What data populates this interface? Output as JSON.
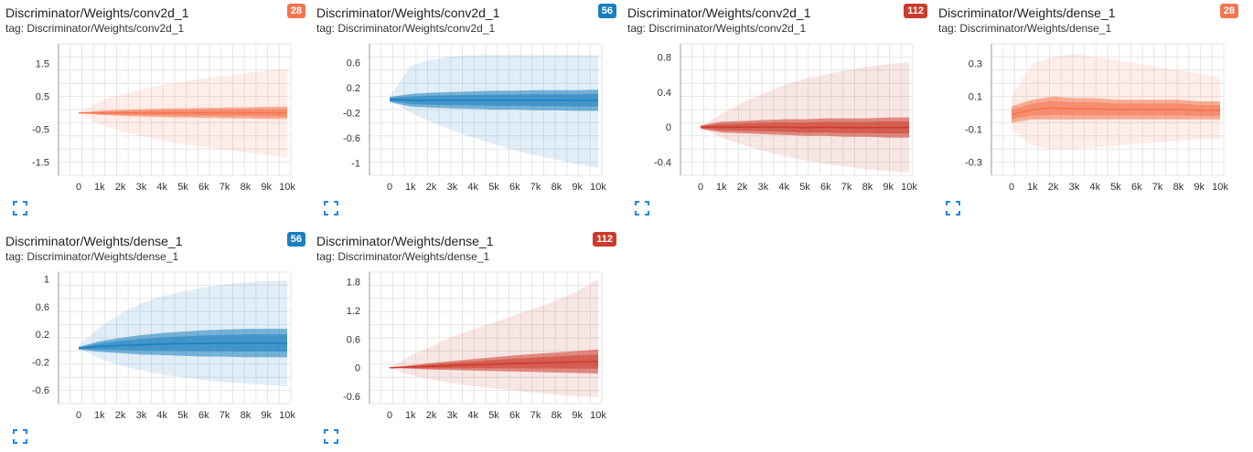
{
  "colors": {
    "step28": "#f4754f",
    "step56": "#1a7fbf",
    "step112": "#cc3b2b",
    "expand_icon": "#1e88e5"
  },
  "cards": [
    {
      "title": "Discriminator/Weights/conv2d_1",
      "tag": "tag: Discriminator/Weights/conv2d_1",
      "badge": "28",
      "color": "#f4754f"
    },
    {
      "title": "Discriminator/Weights/conv2d_1",
      "tag": "tag: Discriminator/Weights/conv2d_1",
      "badge": "56",
      "color": "#1a7fbf"
    },
    {
      "title": "Discriminator/Weights/conv2d_1",
      "tag": "tag: Discriminator/Weights/conv2d_1",
      "badge": "112",
      "color": "#cc3b2b"
    },
    {
      "title": "Discriminator/Weights/dense_1",
      "tag": "tag: Discriminator/Weights/dense_1",
      "badge": "28",
      "color": "#f4754f"
    },
    {
      "title": "Discriminator/Weights/dense_1",
      "tag": "tag: Discriminator/Weights/dense_1",
      "badge": "56",
      "color": "#1a7fbf"
    },
    {
      "title": "Discriminator/Weights/dense_1",
      "tag": "tag: Discriminator/Weights/dense_1",
      "badge": "112",
      "color": "#cc3b2b"
    }
  ],
  "chart_data": [
    {
      "type": "area",
      "title": "Discriminator/Weights/conv2d_1",
      "x_ticks": [
        "0",
        "1k",
        "2k",
        "3k",
        "4k",
        "5k",
        "6k",
        "7k",
        "8k",
        "9k",
        "10k"
      ],
      "xlim": [
        0,
        10000
      ],
      "y_ticks": [
        "1.5",
        "0.5",
        "-0.5",
        "-1.5"
      ],
      "y_tick_values": [
        1.5,
        0.5,
        -0.5,
        -1.5
      ],
      "ylim": [
        -1.9,
        2.1
      ],
      "x": [
        0,
        1000,
        2000,
        3000,
        4000,
        5000,
        6000,
        7000,
        8000,
        9000,
        10000
      ],
      "outer_upper": [
        0.0,
        0.35,
        0.55,
        0.7,
        0.85,
        0.95,
        1.05,
        1.12,
        1.2,
        1.28,
        1.35
      ],
      "outer_lower": [
        0.0,
        -0.35,
        -0.55,
        -0.7,
        -0.85,
        -0.95,
        -1.05,
        -1.12,
        -1.2,
        -1.28,
        -1.35
      ],
      "inner_upper": [
        0.0,
        0.06,
        0.09,
        0.11,
        0.13,
        0.14,
        0.15,
        0.16,
        0.17,
        0.18,
        0.19
      ],
      "inner_lower": [
        0.0,
        -0.06,
        -0.09,
        -0.11,
        -0.13,
        -0.14,
        -0.15,
        -0.16,
        -0.17,
        -0.18,
        -0.19
      ],
      "grid": true
    },
    {
      "type": "area",
      "title": "Discriminator/Weights/conv2d_1",
      "x_ticks": [
        "0",
        "1k",
        "2k",
        "3k",
        "4k",
        "5k",
        "6k",
        "7k",
        "8k",
        "9k",
        "10k"
      ],
      "xlim": [
        0,
        10000
      ],
      "y_ticks": [
        "0.6",
        "0.2",
        "-0.2",
        "-0.6",
        "-1"
      ],
      "y_tick_values": [
        0.6,
        0.2,
        -0.2,
        -0.6,
        -1.0
      ],
      "ylim": [
        -1.2,
        0.9
      ],
      "x": [
        0,
        1000,
        2000,
        3000,
        4000,
        5000,
        6000,
        7000,
        8000,
        9000,
        10000
      ],
      "outer_upper": [
        0.05,
        0.55,
        0.65,
        0.7,
        0.72,
        0.72,
        0.72,
        0.72,
        0.72,
        0.72,
        0.72
      ],
      "outer_lower": [
        0.0,
        -0.2,
        -0.35,
        -0.48,
        -0.6,
        -0.7,
        -0.8,
        -0.88,
        -0.95,
        -1.02,
        -1.08
      ],
      "inner_upper": [
        0.05,
        0.1,
        0.12,
        0.13,
        0.14,
        0.15,
        0.15,
        0.16,
        0.16,
        0.16,
        0.17
      ],
      "inner_lower": [
        -0.03,
        -0.1,
        -0.12,
        -0.13,
        -0.14,
        -0.15,
        -0.15,
        -0.16,
        -0.16,
        -0.17,
        -0.17
      ],
      "grid": true
    },
    {
      "type": "area",
      "title": "Discriminator/Weights/conv2d_1",
      "x_ticks": [
        "0",
        "1k",
        "2k",
        "3k",
        "4k",
        "5k",
        "6k",
        "7k",
        "8k",
        "9k",
        "10k"
      ],
      "xlim": [
        0,
        10000
      ],
      "y_ticks": [
        "0.8",
        "0.4",
        "0",
        "-0.4"
      ],
      "y_tick_values": [
        0.8,
        0.4,
        0.0,
        -0.4
      ],
      "ylim": [
        -0.55,
        0.95
      ],
      "x": [
        0,
        1000,
        2000,
        3000,
        4000,
        5000,
        6000,
        7000,
        8000,
        9000,
        10000
      ],
      "outer_upper": [
        0.0,
        0.15,
        0.28,
        0.38,
        0.48,
        0.55,
        0.6,
        0.65,
        0.69,
        0.72,
        0.74
      ],
      "outer_lower": [
        0.0,
        -0.12,
        -0.2,
        -0.27,
        -0.33,
        -0.38,
        -0.42,
        -0.45,
        -0.48,
        -0.5,
        -0.52
      ],
      "inner_upper": [
        0.02,
        0.06,
        0.07,
        0.08,
        0.09,
        0.09,
        0.1,
        0.1,
        0.1,
        0.11,
        0.11
      ],
      "inner_lower": [
        -0.02,
        -0.06,
        -0.07,
        -0.08,
        -0.09,
        -0.1,
        -0.1,
        -0.11,
        -0.11,
        -0.12,
        -0.12
      ],
      "grid": true
    },
    {
      "type": "area",
      "title": "Discriminator/Weights/dense_1",
      "x_ticks": [
        "0",
        "1k",
        "2k",
        "3k",
        "4k",
        "5k",
        "6k",
        "7k",
        "8k",
        "9k",
        "10k"
      ],
      "xlim": [
        0,
        10000
      ],
      "y_ticks": [
        "0.3",
        "0.1",
        "-0.1",
        "-0.3"
      ],
      "y_tick_values": [
        0.3,
        0.1,
        -0.1,
        -0.3
      ],
      "ylim": [
        -0.38,
        0.42
      ],
      "x": [
        0,
        1000,
        2000,
        3000,
        4000,
        5000,
        6000,
        7000,
        8000,
        9000,
        10000
      ],
      "outer_upper": [
        0.1,
        0.3,
        0.34,
        0.36,
        0.34,
        0.32,
        0.3,
        0.28,
        0.26,
        0.24,
        0.22
      ],
      "outer_lower": [
        -0.1,
        -0.2,
        -0.22,
        -0.22,
        -0.21,
        -0.2,
        -0.19,
        -0.18,
        -0.17,
        -0.16,
        -0.16
      ],
      "inner_upper": [
        0.04,
        0.08,
        0.1,
        0.09,
        0.09,
        0.08,
        0.08,
        0.08,
        0.08,
        0.07,
        0.07
      ],
      "inner_lower": [
        -0.06,
        -0.04,
        -0.04,
        -0.04,
        -0.04,
        -0.04,
        -0.04,
        -0.04,
        -0.04,
        -0.04,
        -0.04
      ],
      "grid": true
    },
    {
      "type": "area",
      "title": "Discriminator/Weights/dense_1",
      "x_ticks": [
        "0",
        "1k",
        "2k",
        "3k",
        "4k",
        "5k",
        "6k",
        "7k",
        "8k",
        "9k",
        "10k"
      ],
      "xlim": [
        0,
        10000
      ],
      "y_ticks": [
        "1",
        "0.6",
        "0.2",
        "-0.2",
        "-0.6"
      ],
      "y_tick_values": [
        1.0,
        0.6,
        0.2,
        -0.2,
        -0.6
      ],
      "ylim": [
        -0.8,
        1.1
      ],
      "x": [
        0,
        1000,
        2000,
        3000,
        4000,
        5000,
        6000,
        7000,
        8000,
        9000,
        10000
      ],
      "outer_upper": [
        0.05,
        0.3,
        0.5,
        0.65,
        0.75,
        0.82,
        0.88,
        0.92,
        0.95,
        0.97,
        0.98
      ],
      "outer_lower": [
        0.0,
        -0.15,
        -0.25,
        -0.32,
        -0.38,
        -0.42,
        -0.46,
        -0.49,
        -0.51,
        -0.53,
        -0.55
      ],
      "inner_upper": [
        0.02,
        0.1,
        0.15,
        0.19,
        0.22,
        0.24,
        0.26,
        0.27,
        0.28,
        0.28,
        0.28
      ],
      "inner_lower": [
        -0.02,
        -0.05,
        -0.07,
        -0.09,
        -0.1,
        -0.11,
        -0.12,
        -0.12,
        -0.13,
        -0.13,
        -0.13
      ],
      "grid": true
    },
    {
      "type": "area",
      "title": "Discriminator/Weights/dense_1",
      "x_ticks": [
        "0",
        "1k",
        "2k",
        "3k",
        "4k",
        "5k",
        "6k",
        "7k",
        "8k",
        "9k",
        "10k"
      ],
      "xlim": [
        0,
        10000
      ],
      "y_ticks": [
        "1.8",
        "1.2",
        "0.6",
        "0",
        "-0.6"
      ],
      "y_tick_values": [
        1.8,
        1.2,
        0.6,
        0.0,
        -0.6
      ],
      "ylim": [
        -0.75,
        2.0
      ],
      "x": [
        0,
        1000,
        2000,
        3000,
        4000,
        5000,
        6000,
        7000,
        8000,
        9000,
        10000
      ],
      "outer_upper": [
        0.0,
        0.25,
        0.45,
        0.65,
        0.8,
        0.95,
        1.1,
        1.25,
        1.4,
        1.6,
        1.85
      ],
      "outer_lower": [
        0.0,
        -0.15,
        -0.25,
        -0.32,
        -0.38,
        -0.43,
        -0.48,
        -0.52,
        -0.56,
        -0.6,
        -0.62
      ],
      "inner_upper": [
        0.0,
        0.05,
        0.1,
        0.14,
        0.18,
        0.22,
        0.26,
        0.29,
        0.32,
        0.35,
        0.38
      ],
      "inner_lower": [
        0.0,
        -0.02,
        -0.04,
        -0.05,
        -0.06,
        -0.07,
        -0.08,
        -0.09,
        -0.1,
        -0.11,
        -0.12
      ],
      "grid": true
    }
  ]
}
